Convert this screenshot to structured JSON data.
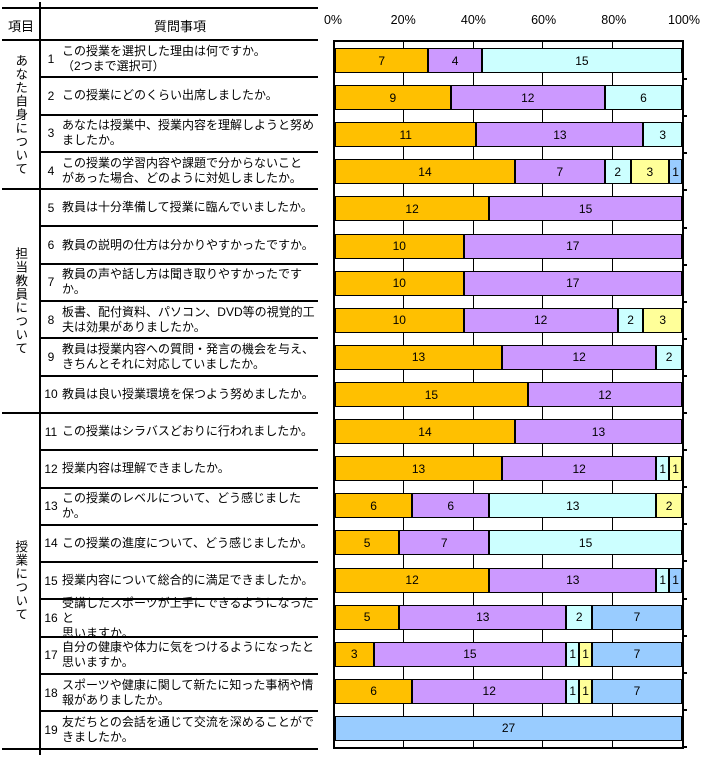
{
  "table": {
    "item_header": "項目",
    "question_header": "質問事項",
    "groups": [
      {
        "label": "あなた自身について",
        "from": 1,
        "to": 4
      },
      {
        "label": "担当教員について",
        "from": 5,
        "to": 10
      },
      {
        "label": "授業について",
        "from": 11,
        "to": 19
      }
    ],
    "questions": [
      {
        "num": "1",
        "text": "この授業を選択した理由は何ですか。\n（2つまで選択可）"
      },
      {
        "num": "2",
        "text": "この授業にどのくらい出席しましたか。"
      },
      {
        "num": "3",
        "text": "あなたは授業中、授業内容を理解しようと努め\nましたか。"
      },
      {
        "num": "4",
        "text": "この授業の学習内容や課題で分からないこと\nがあった場合、どのように対処しましたか。"
      },
      {
        "num": "5",
        "text": "教員は十分準備して授業に臨んでいましたか。"
      },
      {
        "num": "6",
        "text": "教員の説明の仕方は分かりやすかったですか。"
      },
      {
        "num": "7",
        "text": "教員の声や話し方は聞き取りやすかったですか。"
      },
      {
        "num": "8",
        "text": "板書、配付資料、パソコン、DVD等の視覚的工\n夫は効果がありましたか。"
      },
      {
        "num": "9",
        "text": "教員は授業内容への質問・発言の機会を与え、\nきちんとそれに対応していましたか。"
      },
      {
        "num": "10",
        "text": "教員は良い授業環境を保つよう努めましたか。"
      },
      {
        "num": "11",
        "text": "この授業はシラバスどおりに行われましたか。"
      },
      {
        "num": "12",
        "text": "授業内容は理解できましたか。"
      },
      {
        "num": "13",
        "text": "この授業のレベルについて、どう感じましたか。"
      },
      {
        "num": "14",
        "text": "この授業の進度について、どう感じましたか。"
      },
      {
        "num": "15",
        "text": "授業内容について総合的に満足できましたか。"
      },
      {
        "num": "16",
        "text": "受講したスポーツが上手にできるようになったと\n思いますか。"
      },
      {
        "num": "17",
        "text": "自分の健康や体力に気をつけるようになったと\n思いますか。"
      },
      {
        "num": "18",
        "text": "スポーツや健康に関して新たに知った事柄や情\n報がありましたか。"
      },
      {
        "num": "19",
        "text": "友だちとの会話を通じて交流を深めることがで\nきましたか。"
      }
    ]
  },
  "chart_data": {
    "type": "bar",
    "subtype": "100-percent-stacked-horizontal",
    "title": "",
    "xlabel": "",
    "ylabel": "",
    "xlim": [
      0,
      100
    ],
    "axis_ticks": [
      "0%",
      "20%",
      "40%",
      "60%",
      "80%",
      "100%"
    ],
    "grid": true,
    "legend_position": "none",
    "segment_colors": [
      "#FFC000",
      "#CC99FF",
      "#CCFFFF",
      "#FFFF99",
      "#99CCFF"
    ],
    "rows": [
      {
        "question": 1,
        "values": [
          7,
          4,
          15,
          0,
          0
        ]
      },
      {
        "question": 2,
        "values": [
          9,
          12,
          6,
          0,
          0
        ]
      },
      {
        "question": 3,
        "values": [
          11,
          13,
          3,
          0,
          0
        ]
      },
      {
        "question": 4,
        "values": [
          14,
          7,
          2,
          3,
          1
        ]
      },
      {
        "question": 5,
        "values": [
          12,
          15,
          0,
          0,
          0
        ]
      },
      {
        "question": 6,
        "values": [
          10,
          17,
          0,
          0,
          0
        ]
      },
      {
        "question": 7,
        "values": [
          10,
          17,
          0,
          0,
          0
        ]
      },
      {
        "question": 8,
        "values": [
          10,
          12,
          2,
          3,
          0
        ]
      },
      {
        "question": 9,
        "values": [
          13,
          12,
          2,
          0,
          0
        ]
      },
      {
        "question": 10,
        "values": [
          15,
          12,
          0,
          0,
          0
        ]
      },
      {
        "question": 11,
        "values": [
          14,
          13,
          0,
          0,
          0
        ]
      },
      {
        "question": 12,
        "values": [
          13,
          12,
          1,
          1,
          0
        ]
      },
      {
        "question": 13,
        "values": [
          6,
          6,
          13,
          2,
          0
        ]
      },
      {
        "question": 14,
        "values": [
          5,
          7,
          15,
          0,
          0
        ]
      },
      {
        "question": 15,
        "values": [
          12,
          13,
          1,
          0,
          1
        ]
      },
      {
        "question": 16,
        "values": [
          5,
          13,
          2,
          0,
          7
        ]
      },
      {
        "question": 17,
        "values": [
          3,
          15,
          1,
          1,
          7
        ]
      },
      {
        "question": 18,
        "values": [
          6,
          12,
          1,
          1,
          7
        ]
      },
      {
        "question": 19,
        "values": [
          0,
          0,
          0,
          0,
          27
        ]
      }
    ]
  }
}
